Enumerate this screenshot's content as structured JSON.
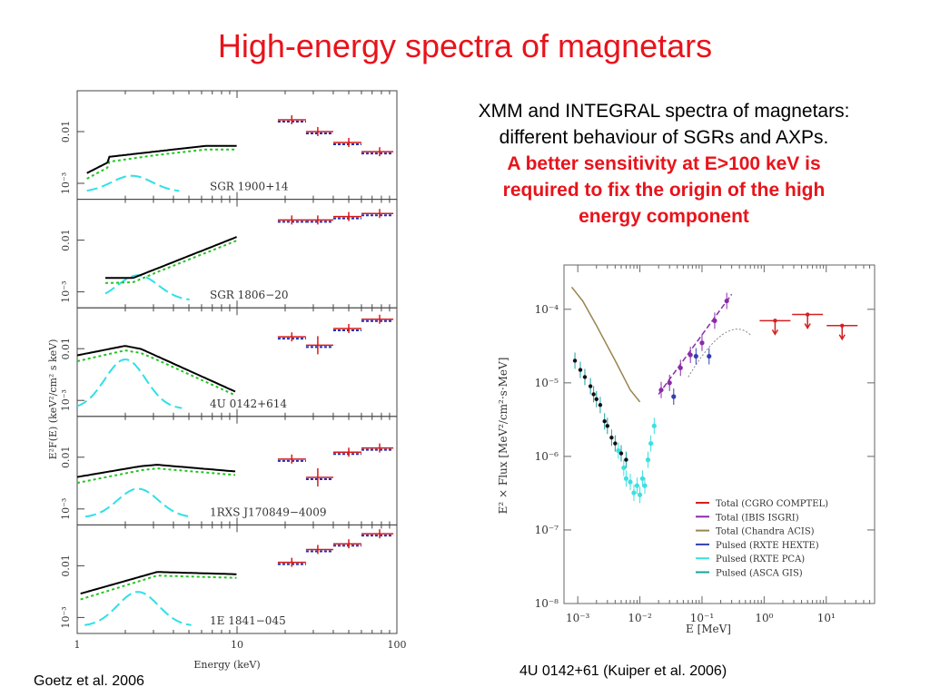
{
  "slide": {
    "title": "High-energy spectra of magnetars",
    "desc_line1": "XMM and INTEGRAL spectra of magnetars:",
    "desc_line2": "different behaviour of SGRs and AXPs.",
    "desc_emph1": "A better sensitivity at E>100 keV is",
    "desc_emph2": "required to fix the origin of the high",
    "desc_emph3": "energy component",
    "caption_left": "Goetz et al. 2006",
    "caption_right": "4U 0142+61 (Kuiper et al. 2006)"
  },
  "colors": {
    "title": "#e8131b",
    "model": "#000000",
    "powerlaw": "#22c422",
    "blackbody": "#2ee0e8",
    "integral_data": "#d81a1a",
    "integral_model": "#1f2fb0"
  },
  "chart_data": [
    {
      "type": "line",
      "title": "",
      "xlabel": "Energy (keV)",
      "ylabel": "E²F(E) (keV²/cm² s keV)",
      "xscale": "log",
      "yscale": "log",
      "xlim": [
        1,
        100
      ],
      "xticks": [
        "1",
        "10",
        "100"
      ],
      "ytick_labels": [
        "0.01",
        "10⁻³"
      ],
      "panels": [
        {
          "label": "SGR 1900+14",
          "integral_points": [
            [
              22,
              0.012
            ],
            [
              32,
              0.008
            ],
            [
              50,
              0.0055
            ],
            [
              78,
              0.004
            ]
          ]
        },
        {
          "label": "SGR 1806−20",
          "integral_points": [
            [
              22,
              0.016
            ],
            [
              32,
              0.016
            ],
            [
              50,
              0.018
            ],
            [
              78,
              0.02
            ]
          ]
        },
        {
          "label": "4U 0142+614",
          "integral_points": [
            [
              22,
              0.012
            ],
            [
              32,
              0.009
            ],
            [
              50,
              0.016
            ],
            [
              78,
              0.022
            ]
          ]
        },
        {
          "label": "1RXS J170849−4009",
          "integral_points": [
            [
              22,
              0.0075
            ],
            [
              32,
              0.004
            ],
            [
              50,
              0.0095
            ],
            [
              78,
              0.011
            ]
          ]
        },
        {
          "label": "1E 1841−045",
          "integral_points": [
            [
              22,
              0.009
            ],
            [
              32,
              0.014
            ],
            [
              50,
              0.017
            ],
            [
              78,
              0.024
            ]
          ]
        }
      ]
    },
    {
      "type": "scatter",
      "title": "",
      "xlabel": "E [MeV]",
      "ylabel": "E² × Flux [MeV²/cm²·s·MeV]",
      "xscale": "log",
      "yscale": "log",
      "xlim": [
        0.0006,
        60
      ],
      "ylim": [
        1e-08,
        0.0004
      ],
      "xticks": [
        {
          "v": 0.001,
          "label": "10⁻³"
        },
        {
          "v": 0.01,
          "label": "10⁻²"
        },
        {
          "v": 0.1,
          "label": "10⁻¹"
        },
        {
          "v": 1,
          "label": "10⁰"
        },
        {
          "v": 10,
          "label": "10¹"
        }
      ],
      "yticks": [
        {
          "v": 1e-08,
          "label": "10⁻⁸"
        },
        {
          "v": 1e-07,
          "label": "10⁻⁷"
        },
        {
          "v": 1e-06,
          "label": "10⁻⁶"
        },
        {
          "v": 1e-05,
          "label": "10⁻⁵"
        },
        {
          "v": 0.0001,
          "label": "10⁻⁴"
        }
      ],
      "series": [
        {
          "name": "Total (CGRO COMPTEL)",
          "color": "#d42020",
          "upper_limits": [
            [
              1.5,
              7e-05
            ],
            [
              5,
              8.5e-05
            ],
            [
              18,
              6e-05
            ]
          ]
        },
        {
          "name": "Total (IBIS ISGRI)",
          "color": "#8a2aa8",
          "points": [
            [
              0.022,
              8e-06
            ],
            [
              0.03,
              1e-05
            ],
            [
              0.045,
              1.6e-05
            ],
            [
              0.065,
              2.4e-05
            ],
            [
              0.1,
              3.5e-05
            ],
            [
              0.16,
              7e-05
            ],
            [
              0.25,
              0.00013
            ]
          ]
        },
        {
          "name": "Total (Chandra ACIS)",
          "color": "#9a8550",
          "points": [
            [
              0.0008,
              0.0002
            ],
            [
              0.0012,
              0.00013
            ],
            [
              0.002,
              6e-05
            ],
            [
              0.004,
              2e-05
            ],
            [
              0.007,
              8e-06
            ],
            [
              0.01,
              5.5e-06
            ]
          ]
        },
        {
          "name": "Pulsed (RXTE HEXTE)",
          "color": "#3340b0",
          "points": [
            [
              0.035,
              6.5e-06
            ],
            [
              0.08,
              2.3e-05
            ],
            [
              0.13,
              2.3e-05
            ]
          ]
        },
        {
          "name": "Pulsed (RXTE PCA)",
          "color": "#3ce0e0",
          "points": [
            [
              0.0045,
              1.2e-06
            ],
            [
              0.0055,
              7e-07
            ],
            [
              0.006,
              5e-07
            ],
            [
              0.007,
              4.5e-07
            ],
            [
              0.008,
              3.2e-07
            ],
            [
              0.009,
              4e-07
            ],
            [
              0.01,
              3e-07
            ],
            [
              0.011,
              5e-07
            ],
            [
              0.012,
              4e-07
            ],
            [
              0.0135,
              9e-07
            ],
            [
              0.015,
              1.5e-06
            ],
            [
              0.017,
              2.6e-06
            ]
          ]
        },
        {
          "name": "Pulsed (ASCA GIS)",
          "color": "#1aa0a0",
          "points": [
            [
              0.0009,
              2e-05
            ],
            [
              0.0011,
              1.5e-05
            ],
            [
              0.0013,
              1.2e-05
            ],
            [
              0.0016,
              9e-06
            ],
            [
              0.0018,
              7e-06
            ],
            [
              0.002,
              6e-06
            ],
            [
              0.0023,
              5e-06
            ],
            [
              0.0027,
              3e-06
            ],
            [
              0.003,
              2.6e-06
            ],
            [
              0.0035,
              1.8e-06
            ],
            [
              0.004,
              1.5e-06
            ],
            [
              0.005,
              1.1e-06
            ],
            [
              0.006,
              9e-07
            ]
          ]
        }
      ]
    }
  ]
}
